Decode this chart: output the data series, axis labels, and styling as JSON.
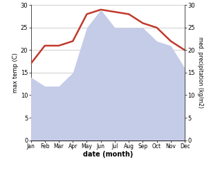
{
  "months": [
    "Jan",
    "Feb",
    "Mar",
    "Apr",
    "May",
    "Jun",
    "Jul",
    "Aug",
    "Sep",
    "Oct",
    "Nov",
    "Dec"
  ],
  "temp": [
    17,
    21,
    21,
    22,
    28,
    29,
    28.5,
    28,
    26,
    25,
    22,
    20
  ],
  "precip": [
    14,
    12,
    12,
    15,
    25,
    29,
    25,
    25,
    25,
    22,
    21,
    16
  ],
  "temp_color": "#c0392b",
  "precip_fill_color": "#c5cce8",
  "ylabel_left": "max temp (C)",
  "ylabel_right": "med. precipitation (kg/m2)",
  "xlabel": "date (month)",
  "ylim": [
    0,
    30
  ],
  "yticks": [
    0,
    5,
    10,
    15,
    20,
    25,
    30
  ],
  "bg_color": "#ffffff",
  "grid_color": "#bbbbbb",
  "temp_linewidth": 1.8
}
